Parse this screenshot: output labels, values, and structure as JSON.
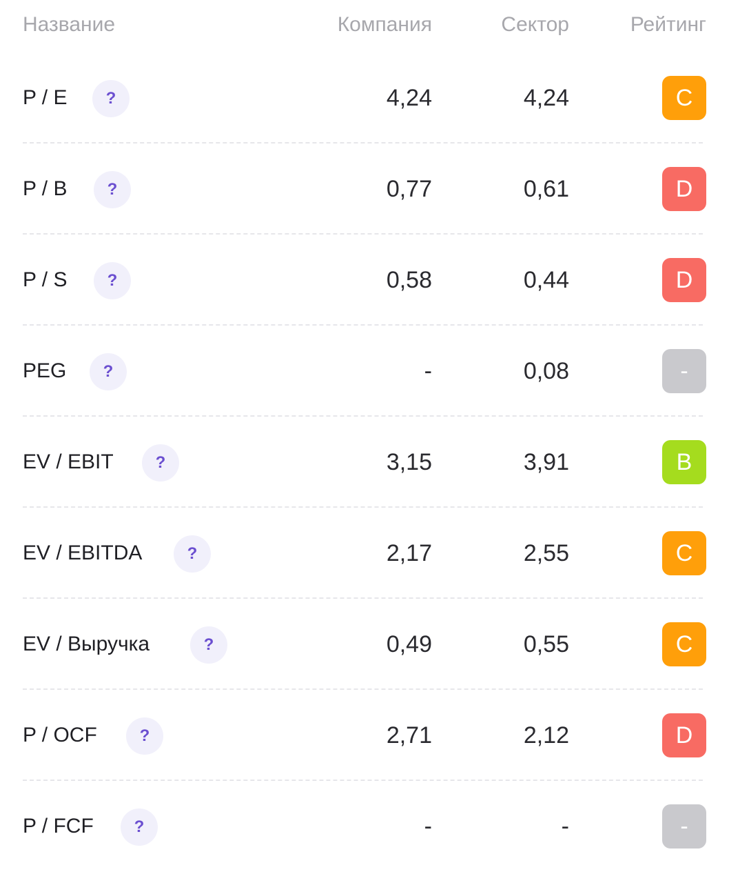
{
  "header": {
    "name": "Название",
    "company": "Компания",
    "sector": "Сектор",
    "rating": "Рейтинг"
  },
  "rows": [
    {
      "name": "P / E",
      "help": "?",
      "company": "4,24",
      "sector": "4,24",
      "rating": "C",
      "rating_color": "#FF9F0A"
    },
    {
      "name": "P / B",
      "help": "?",
      "company": "0,77",
      "sector": "0,61",
      "rating": "D",
      "rating_color": "#F86B63"
    },
    {
      "name": "P / S",
      "help": "?",
      "company": "0,58",
      "sector": "0,44",
      "rating": "D",
      "rating_color": "#F86B63"
    },
    {
      "name": "PEG",
      "help": "?",
      "company": "-",
      "sector": "0,08",
      "rating": "-",
      "rating_color": "#C9C9CD"
    },
    {
      "name": "EV / EBIT",
      "help": "?",
      "company": "3,15",
      "sector": "3,91",
      "rating": "B",
      "rating_color": "#A5DC1E"
    },
    {
      "name": "EV / EBITDA",
      "help": "?",
      "company": "2,17",
      "sector": "2,55",
      "rating": "C",
      "rating_color": "#FF9F0A"
    },
    {
      "name": "EV / Выручка",
      "help": "?",
      "company": "0,49",
      "sector": "0,55",
      "rating": "C",
      "rating_color": "#FF9F0A"
    },
    {
      "name": "P / OCF",
      "help": "?",
      "company": "2,71",
      "sector": "2,12",
      "rating": "D",
      "rating_color": "#F86B63"
    },
    {
      "name": "P / FCF",
      "help": "?",
      "company": "-",
      "sector": "-",
      "rating": "-",
      "rating_color": "#C9C9CD"
    }
  ]
}
